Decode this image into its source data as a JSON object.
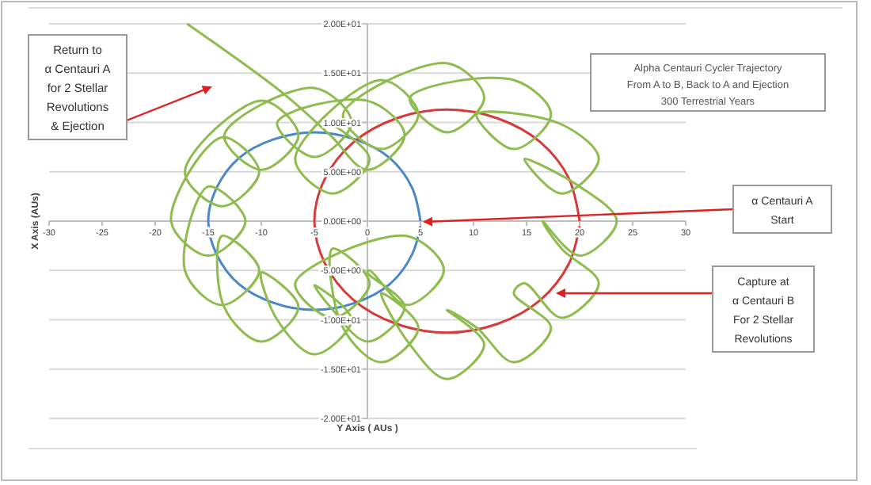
{
  "chart_data": {
    "type": "line",
    "title": "Alpha Centauri Cycler Trajectory\nFrom A to B, Back to A and Ejection\n300 Terrestrial Years",
    "xlabel": "Y Axis ( AUs )",
    "ylabel": "X Axis (AUs)",
    "xlim": [
      -30,
      30
    ],
    "xticks": [
      -30,
      -25,
      -20,
      -15,
      -10,
      -5,
      0,
      5,
      10,
      15,
      20,
      25,
      30
    ],
    "ylim": [
      -20,
      20
    ],
    "yticks": [
      {
        "value": -20,
        "label": "-2.00E+01"
      },
      {
        "value": -15,
        "label": "-1.50E+01"
      },
      {
        "value": -10,
        "label": "-1.00E+01"
      },
      {
        "value": -5,
        "label": "-5.00E+00"
      },
      {
        "value": 0,
        "label": "0.00E+00"
      },
      {
        "value": 5,
        "label": "5.00E+00"
      },
      {
        "value": 10,
        "label": "1.00E+01"
      },
      {
        "value": 15,
        "label": "1.50E+01"
      },
      {
        "value": 20,
        "label": "2.00E+01"
      }
    ],
    "grid": "y",
    "marker": "none",
    "series": [
      {
        "color": "#4a86c8",
        "x": [
          5,
          4.2,
          2.1,
          -1.2,
          -5,
          -8.8,
          -12.1,
          -14.2,
          -15,
          -14.2,
          -12.1,
          -8.8,
          -5,
          -1.2,
          2.1,
          4.2,
          5
        ],
        "values": [
          0,
          3.4,
          6.4,
          8.3,
          9,
          8.3,
          6.4,
          3.4,
          0,
          -3.4,
          -6.4,
          -8.3,
          -9,
          -8.3,
          -6.4,
          -3.4,
          -0.5
        ]
      },
      {
        "color": "#d63b3b",
        "x": [
          20,
          19,
          16.3,
          12.3,
          7.5,
          2.7,
          -1.3,
          -4,
          -5,
          -4,
          -1.3,
          2.7,
          7.5,
          12.3,
          16.3,
          19,
          20
        ],
        "values": [
          0,
          4.3,
          8,
          10.4,
          11.3,
          10.4,
          8,
          4.3,
          0,
          -4.3,
          -8,
          -10.4,
          -11.3,
          -10.4,
          -8,
          -4.3,
          -0.5
        ]
      },
      {
        "color": "#8fbc4e",
        "x": [
          -3.3,
          0.2,
          -3.3,
          -6.8,
          1.3,
          4.8,
          1.3,
          -2.3,
          7.5,
          11,
          7.5,
          4,
          13.8,
          17.3,
          13.8,
          10.3,
          18.3,
          21.8,
          18.3,
          14.8,
          20,
          23.5,
          20,
          16.5,
          18.3,
          21.8,
          18.3,
          14.8,
          13.8,
          17.3,
          13.8,
          10.3,
          7.5,
          11,
          7.5,
          4,
          1.3,
          4.8,
          1.3,
          -2.3,
          -3.3,
          0.2,
          -3.3,
          -6.8,
          3.7,
          7.2,
          3.7,
          0.2,
          0,
          3.5,
          0,
          -3.5,
          -5,
          -1.5,
          -5,
          -8.5,
          -10,
          -6.5,
          -10,
          -13.5,
          -13.7,
          -10.2,
          -13.7,
          -17.2,
          -15,
          -11.5,
          -15,
          -18.5,
          -13.7,
          -10.2,
          -13.7,
          -17.2,
          -10,
          -6.5,
          -10,
          -13.5,
          -5,
          -1.5,
          -5,
          -8.5,
          0,
          3.5,
          0,
          -3.5,
          -8,
          -17
        ],
        "values": [
          9.8,
          6.3,
          2.8,
          6.3,
          14.3,
          10.8,
          7.3,
          10.8,
          16,
          12.5,
          9,
          12.5,
          14.3,
          10.8,
          7.3,
          10.8,
          9.8,
          6.3,
          2.8,
          6.3,
          3.5,
          0,
          -3.5,
          0,
          -2.8,
          -6.3,
          -9.8,
          -6.3,
          -7.3,
          -10.8,
          -14.3,
          -10.8,
          -9,
          -12.5,
          -16,
          -12.5,
          -7.3,
          -10.8,
          -14.3,
          -10.8,
          -2.8,
          -6.3,
          -9.8,
          -6.3,
          -1.5,
          -5,
          -8.5,
          -5,
          -5.2,
          -8.7,
          -12.2,
          -8.7,
          -6.5,
          -10,
          -13.5,
          -10,
          -5.2,
          -8.7,
          -12.2,
          -8.7,
          -1.5,
          -5,
          -8.5,
          -5,
          3.5,
          0,
          -3.5,
          0,
          8.5,
          5,
          1.5,
          5,
          12.2,
          8.7,
          5.2,
          8.7,
          13.5,
          10,
          6.5,
          10,
          12.2,
          8.7,
          5.2,
          8.7,
          13,
          20
        ]
      }
    ],
    "annotations": [
      "Return to\nα Centauri A\nfor 2 Stellar\nRevolutions\n& Ejection",
      "α Centauri A\nStart",
      "Capture at\nα Centauri B\nFor 2 Stellar\nRevolutions"
    ]
  }
}
